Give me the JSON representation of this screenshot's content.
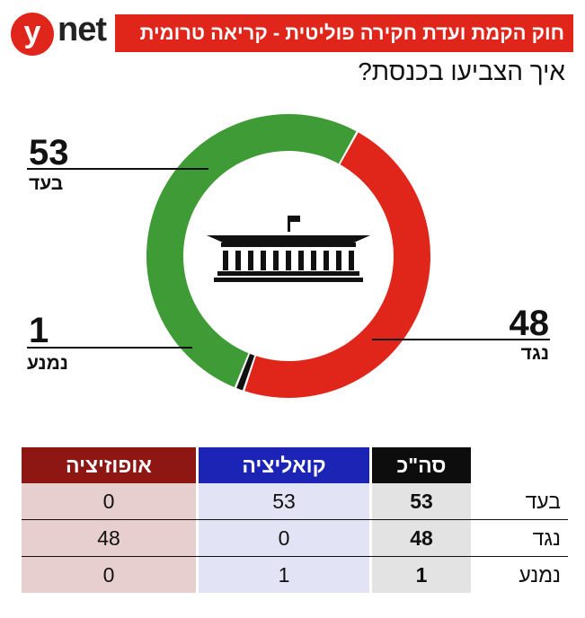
{
  "brand": {
    "logo_letter": "y",
    "logo_text": "net",
    "logo_color": "#e0251b"
  },
  "header": {
    "banner": "חוק הקמת ועדת חקירה פוליטית - קריאה טרומית",
    "subtitle": "איך הצביעו בכנסת?"
  },
  "chart_data": {
    "type": "pie",
    "style": "donut",
    "title": "",
    "center_icon": "knesset-building-icon",
    "slices": [
      {
        "label": "בעד",
        "value": 53,
        "color": "#3e9b35"
      },
      {
        "label": "נגד",
        "value": 48,
        "color": "#e0251b"
      },
      {
        "label": "נמנע",
        "value": 1,
        "color": "#111111"
      }
    ]
  },
  "labels": {
    "for_value": "53",
    "for_label": "בעד",
    "against_value": "48",
    "against_label": "נגד",
    "abstain_value": "1",
    "abstain_label": "נמנע"
  },
  "table": {
    "columns": [
      "אופוזיציה",
      "קואליציה",
      "סה\"כ"
    ],
    "column_colors": [
      "#8f1713",
      "#1c24b5",
      "#0d0d0d"
    ],
    "rows": [
      {
        "label": "בעד",
        "opposition": "0",
        "coalition": "53",
        "total": "53"
      },
      {
        "label": "נגד",
        "opposition": "48",
        "coalition": "0",
        "total": "48"
      },
      {
        "label": "נמנע",
        "opposition": "0",
        "coalition": "1",
        "total": "1"
      }
    ]
  }
}
